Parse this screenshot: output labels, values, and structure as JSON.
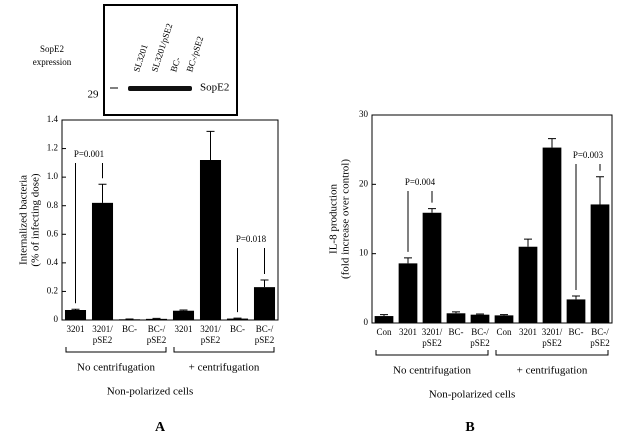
{
  "blot": {
    "label": [
      "SopE2",
      "expression"
    ],
    "lanes": [
      "SL3201",
      "SL3201/pSE2",
      "BC-",
      "BC-/pSE2"
    ],
    "marker": "29",
    "band": "SopE2"
  },
  "chart_data": [
    {
      "type": "bar",
      "panel": "A",
      "ylabel": [
        "Internalized bacteria",
        "(% of infecting dose)"
      ],
      "categories": [
        "3201",
        "3201/\npSE2",
        "BC-",
        "BC-/\npSE2",
        "3201",
        "3201/\npSE2",
        "BC-",
        "BC-/\npSE2"
      ],
      "values": [
        0.07,
        0.82,
        0.005,
        0.008,
        0.065,
        1.12,
        0.01,
        0.23
      ],
      "errors": [
        0.005,
        0.13,
        0.002,
        0.003,
        0.005,
        0.2,
        0.003,
        0.05
      ],
      "color": "#000000",
      "ylim": [
        0,
        1.4
      ],
      "yticks": [
        0,
        0.2,
        0.4,
        0.6,
        0.8,
        {
          "value": 1,
          "label": "1.0"
        },
        1.2,
        1.4
      ],
      "annotations": [
        "P=0.001",
        "P=0.018"
      ],
      "groups": [
        "No centrifugation",
        "+ centrifugation"
      ],
      "xlabel": "Non-polarized cells"
    },
    {
      "type": "bar",
      "panel": "B",
      "ylabel": [
        "IL-8 production",
        "(fold increase over control)"
      ],
      "categories": [
        "Con",
        "3201",
        "3201/\npSE2",
        "BC-",
        "BC-/\npSE2",
        "Con",
        "3201",
        "3201/\npSE2",
        "BC-",
        "BC-/\npSE2"
      ],
      "values": [
        1.0,
        8.6,
        15.9,
        1.4,
        1.2,
        1.1,
        11.0,
        25.3,
        3.4,
        17.1
      ],
      "errors": [
        0.2,
        0.8,
        0.6,
        0.2,
        0.1,
        0.1,
        1.1,
        1.3,
        0.5,
        4.0
      ],
      "color": "#000000",
      "ylim": [
        0,
        30
      ],
      "yticks": [
        0,
        10,
        20,
        30
      ],
      "annotations": [
        "P=0.004",
        "P=0.003"
      ],
      "groups": [
        "No centrifugation",
        "+ centrifugation"
      ],
      "xlabel": "Non-polarized cells"
    }
  ]
}
